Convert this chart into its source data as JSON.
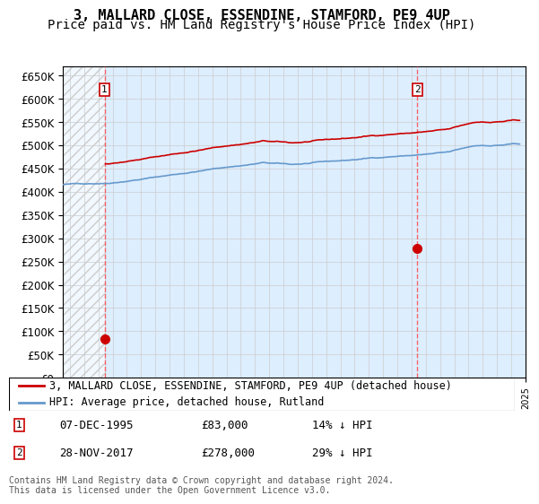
{
  "title": "3, MALLARD CLOSE, ESSENDINE, STAMFORD, PE9 4UP",
  "subtitle": "Price paid vs. HM Land Registry's House Price Index (HPI)",
  "ylabel": "",
  "ylim": [
    0,
    670000
  ],
  "yticks": [
    0,
    50000,
    100000,
    150000,
    200000,
    250000,
    300000,
    350000,
    400000,
    450000,
    500000,
    550000,
    600000,
    650000
  ],
  "xlim_start": 1993.0,
  "xlim_end": 2025.5,
  "hpi_color": "#6699cc",
  "price_color": "#cc0000",
  "vline_color": "#ff4444",
  "grid_color": "#cccccc",
  "bg_color": "#ddeeff",
  "hatch_color": "#cccccc",
  "transaction1": {
    "date_num": 1995.93,
    "price": 83000,
    "label": "1",
    "pct": "14% ↓ HPI",
    "date_str": "07-DEC-1995"
  },
  "transaction2": {
    "date_num": 2017.91,
    "price": 278000,
    "label": "2",
    "pct": "29% ↓ HPI",
    "date_str": "28-NOV-2017"
  },
  "legend_line1": "3, MALLARD CLOSE, ESSENDINE, STAMFORD, PE9 4UP (detached house)",
  "legend_line2": "HPI: Average price, detached house, Rutland",
  "footnote": "Contains HM Land Registry data © Crown copyright and database right 2024.\nThis data is licensed under the Open Government Licence v3.0.",
  "title_fontsize": 11,
  "subtitle_fontsize": 10,
  "tick_fontsize": 8.5,
  "legend_fontsize": 9
}
